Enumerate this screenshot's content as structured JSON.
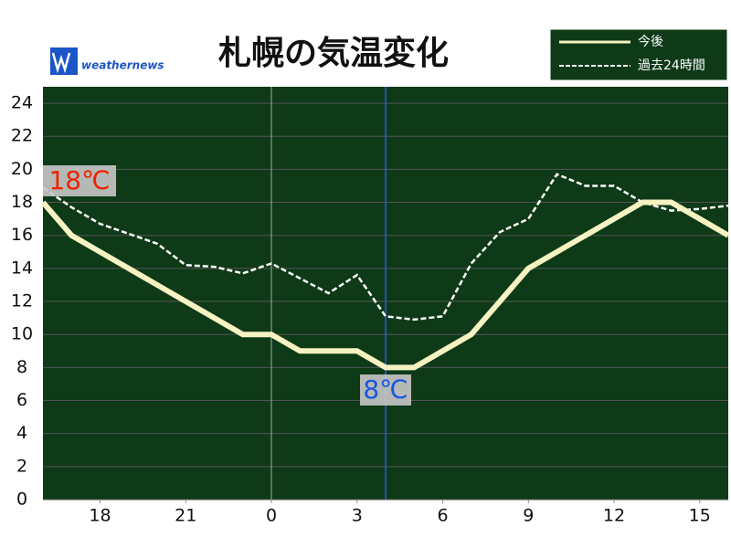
{
  "chart_data": {
    "type": "line",
    "title": "札幌の気温変化",
    "brand": "weathernews",
    "x": [
      16,
      17,
      18,
      19,
      20,
      21,
      22,
      23,
      24,
      25,
      26,
      27,
      28,
      29,
      30,
      31,
      32,
      33,
      34,
      35,
      36,
      37,
      38,
      39,
      40
    ],
    "series": [
      {
        "name": "今後",
        "color": "#f6f2c2",
        "dashed": false,
        "values": [
          18,
          16,
          15,
          14,
          13,
          12,
          11,
          10,
          10,
          9,
          9,
          9,
          8,
          8,
          9,
          10,
          12,
          14,
          15,
          16,
          17,
          18,
          18,
          17,
          16
        ]
      },
      {
        "name": "過去24時間",
        "color": "#ffffff",
        "dashed": true,
        "values": [
          18.9,
          17.7,
          16.7,
          16.1,
          15.5,
          14.2,
          14.1,
          13.7,
          14.3,
          13.4,
          12.5,
          13.6,
          11.1,
          10.9,
          11.1,
          14.3,
          16.2,
          17.0,
          19.7,
          19.0,
          19.0,
          18.0,
          17.5,
          17.6,
          17.8
        ]
      }
    ],
    "xlim": [
      16,
      40
    ],
    "xticks": [
      18,
      21,
      {
        "value": 24,
        "label": "0"
      },
      {
        "value": 27,
        "label": "3"
      },
      {
        "value": 30,
        "label": "6"
      },
      {
        "value": 33,
        "label": "9"
      },
      {
        "value": 36,
        "label": "12"
      },
      {
        "value": 39,
        "label": "15"
      }
    ],
    "ylim": [
      0,
      25
    ],
    "yticks": [
      0,
      2,
      4,
      6,
      8,
      10,
      12,
      14,
      16,
      18,
      20,
      22,
      24
    ],
    "grid": true,
    "day_boundary": 24,
    "now": 28,
    "annotations": [
      {
        "text": "18℃",
        "color": "#ee2200"
      },
      {
        "text": "8℃",
        "color": "#1a55e0"
      }
    ],
    "legend": "top-right"
  }
}
